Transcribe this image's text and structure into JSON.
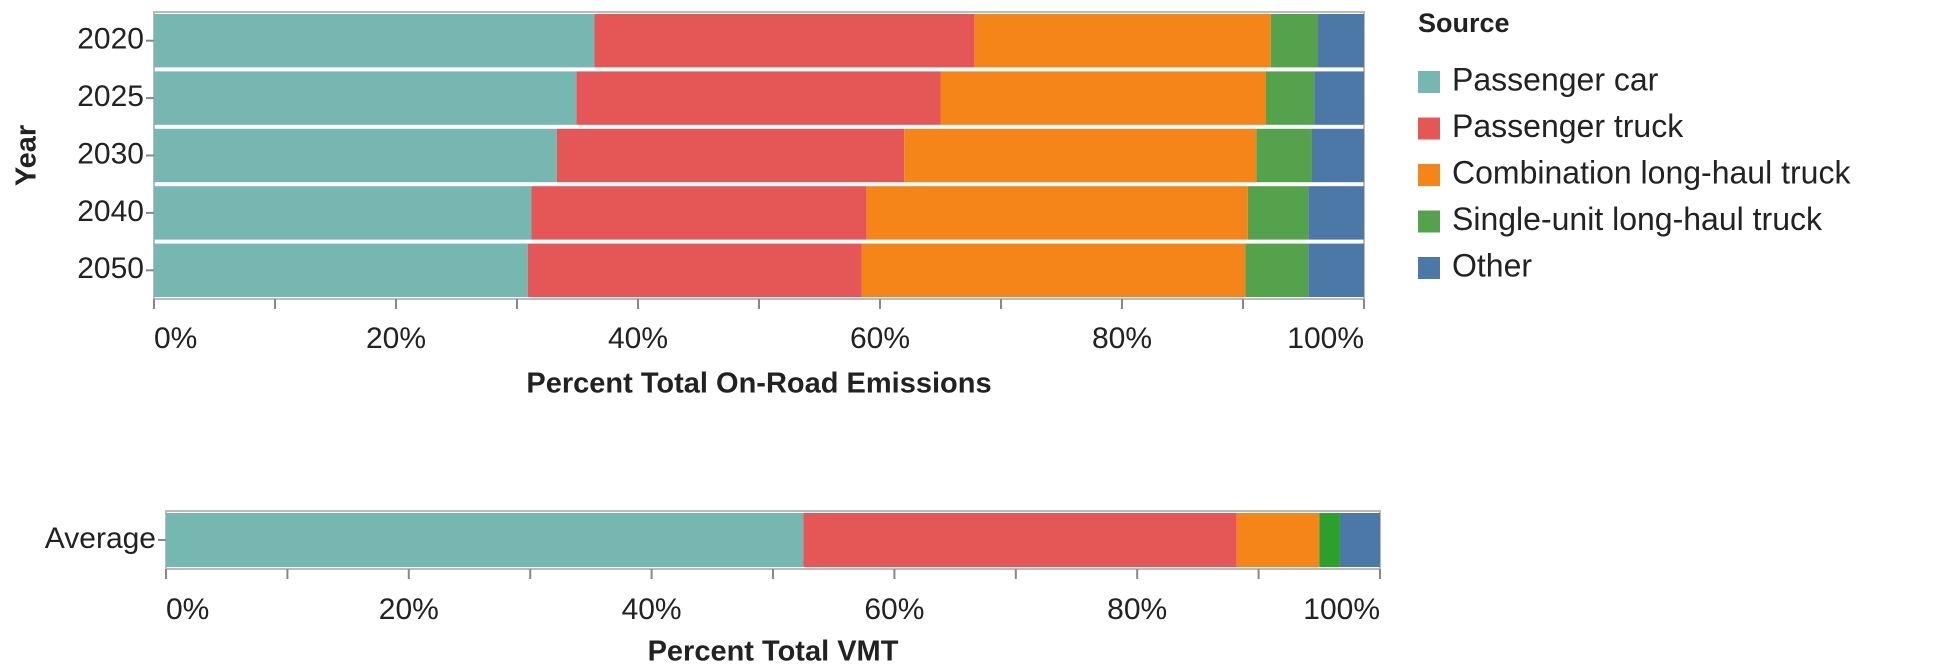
{
  "chart_data": [
    {
      "type": "stacked-bar-horizontal",
      "categories": [
        "2020",
        "2025",
        "2030",
        "2040",
        "2050"
      ],
      "y_label": "Year",
      "x_label": "Percent Total On-Road Emissions",
      "xlim": [
        0,
        100
      ],
      "xticks": [
        {
          "value": 0,
          "label": "0%"
        },
        {
          "value": 20,
          "label": "20%"
        },
        {
          "value": 40,
          "label": "40%"
        },
        {
          "value": 60,
          "label": "60%"
        },
        {
          "value": 80,
          "label": "80%"
        },
        {
          "value": 100,
          "label": "100%"
        }
      ],
      "minor_xticks": [
        10,
        30,
        50,
        70,
        90
      ],
      "legend": {
        "title": "Source"
      },
      "series": [
        {
          "name": "Passenger car",
          "color": "#76b7b2",
          "values": [
            36.4,
            34.9,
            33.3,
            31.2,
            30.9
          ]
        },
        {
          "name": "Passenger truck",
          "color": "#e45756",
          "values": [
            31.4,
            30.1,
            28.7,
            27.7,
            27.6
          ]
        },
        {
          "name": "Combination long-haul truck",
          "color": "#f58518",
          "values": [
            24.5,
            26.9,
            29.1,
            31.5,
            31.7
          ]
        },
        {
          "name": "Single-unit long-haul truck",
          "color": "#54a24b",
          "values": [
            3.9,
            4.0,
            4.6,
            5.0,
            5.2
          ]
        },
        {
          "name": "Other",
          "color": "#4c78a8",
          "values": [
            3.8,
            4.1,
            4.3,
            4.6,
            4.6
          ]
        }
      ]
    },
    {
      "type": "stacked-bar-horizontal",
      "categories": [
        "Average"
      ],
      "x_label": "Percent Total VMT",
      "xlim": [
        0,
        100
      ],
      "xticks": [
        {
          "value": 0,
          "label": "0%"
        },
        {
          "value": 20,
          "label": "20%"
        },
        {
          "value": 40,
          "label": "40%"
        },
        {
          "value": 60,
          "label": "60%"
        },
        {
          "value": 80,
          "label": "80%"
        },
        {
          "value": 100,
          "label": "100%"
        }
      ],
      "minor_xticks": [
        10,
        30,
        50,
        70,
        90
      ],
      "series": [
        {
          "color": "#76b7b2",
          "values": [
            52.5
          ]
        },
        {
          "color": "#e45756",
          "values": [
            35.7
          ]
        },
        {
          "color": "#f58518",
          "values": [
            6.8
          ]
        },
        {
          "color": "#2ca02c",
          "values": [
            1.7
          ]
        },
        {
          "color": "#4c78a8",
          "values": [
            3.3
          ]
        }
      ]
    }
  ]
}
